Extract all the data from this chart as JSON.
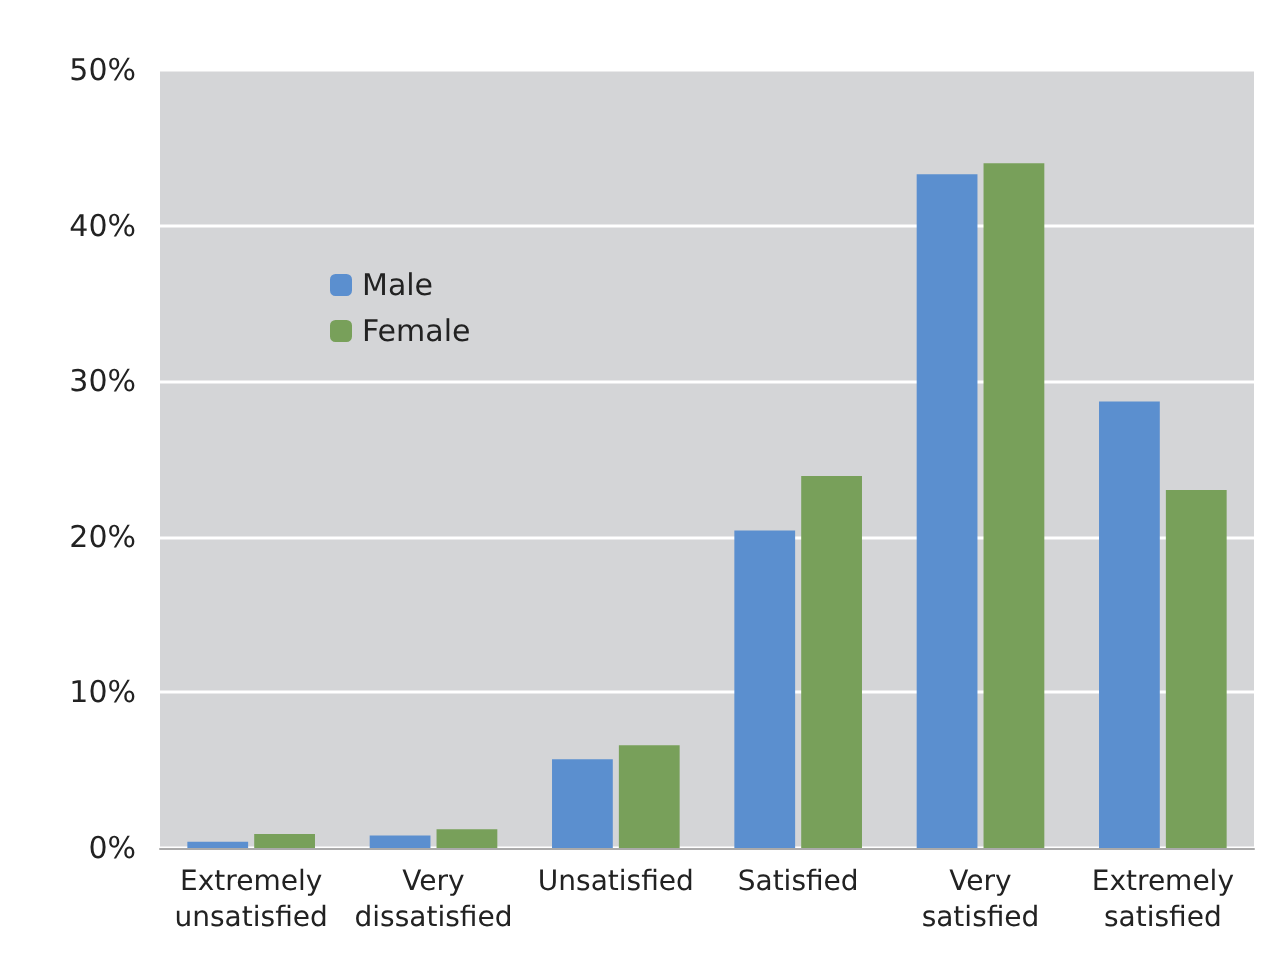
{
  "chart_data": {
    "type": "bar",
    "categories": [
      "Extremely\nunsatisfied",
      "Very\ndissatisfied",
      "Unsatisfied",
      "Satisfied",
      "Very\nsatisfied",
      "Extremely\nsatisfied"
    ],
    "series": [
      {
        "name": "Male",
        "color": "#5b8fcf",
        "values": [
          0.4,
          0.8,
          5.7,
          20.4,
          43.3,
          28.7
        ]
      },
      {
        "name": "Female",
        "color": "#78a05a",
        "values": [
          0.9,
          1.2,
          6.6,
          23.9,
          44.0,
          23.0
        ]
      }
    ],
    "ylim": [
      0,
      50
    ],
    "yticks": [
      {
        "value": 0,
        "label": "0%"
      },
      {
        "value": 10,
        "label": "10%"
      },
      {
        "value": 20,
        "label": "20%"
      },
      {
        "value": 30,
        "label": "30%"
      },
      {
        "value": 40,
        "label": "40%"
      },
      {
        "value": 50,
        "label": "50%"
      }
    ],
    "grid": "y",
    "legend": "top left"
  }
}
